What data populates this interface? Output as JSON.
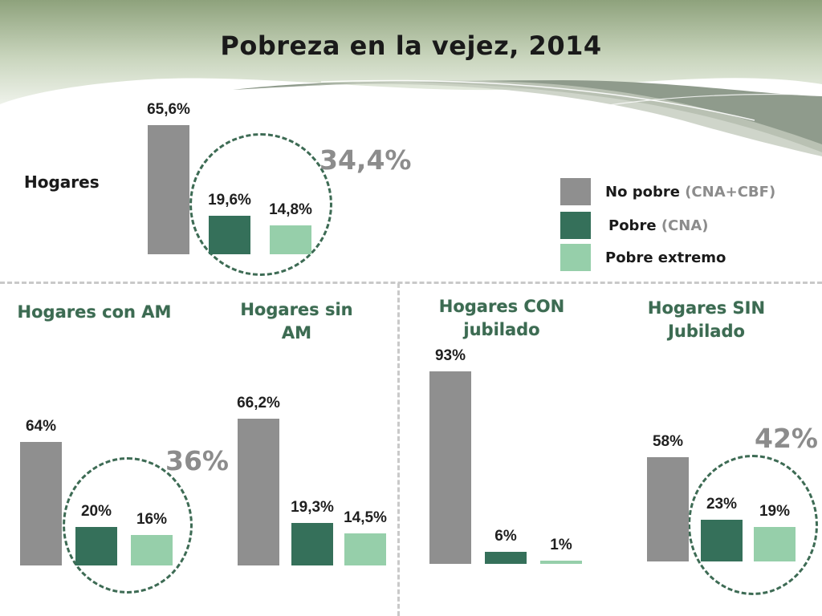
{
  "title": "Pobreza en la vejez, 2014",
  "colors": {
    "no_pobre": "#8f8f8f",
    "pobre": "#35705a",
    "pobre_extremo": "#96cfaa",
    "header_band": "#b7c6a9",
    "swoosh_dark": "#8e9a8b",
    "swoosh_light": "#c9d0c4"
  },
  "legend": {
    "items": [
      {
        "label": "No pobre",
        "note": "(CNA+CBF)",
        "color_key": "no_pobre"
      },
      {
        "label": "Pobre",
        "note": "(CNA)",
        "color_key": "pobre"
      },
      {
        "label": "Pobre extremo",
        "note": "",
        "color_key": "pobre_extremo"
      }
    ]
  },
  "chart_data": [
    {
      "type": "bar",
      "group": "Hogares",
      "title": "Hogares",
      "categories": [
        "No pobre (CNA+CBF)",
        "Pobre (CNA)",
        "Pobre extremo"
      ],
      "values": [
        65.6,
        19.6,
        14.8
      ],
      "value_labels": [
        "65,6%",
        "19,6%",
        "14,8%"
      ],
      "highlight_total": "34,4%",
      "ylim": [
        0,
        100
      ]
    },
    {
      "type": "bar",
      "group": "Hogares con AM",
      "title": "Hogares con AM",
      "categories": [
        "No pobre (CNA+CBF)",
        "Pobre (CNA)",
        "Pobre extremo"
      ],
      "values": [
        64,
        20,
        16
      ],
      "value_labels": [
        "64%",
        "20%",
        "16%"
      ],
      "highlight_total": "36%",
      "ylim": [
        0,
        100
      ]
    },
    {
      "type": "bar",
      "group": "Hogares sin AM",
      "title": "Hogares sin AM",
      "categories": [
        "No pobre (CNA+CBF)",
        "Pobre (CNA)",
        "Pobre extremo"
      ],
      "values": [
        66.2,
        19.3,
        14.5
      ],
      "value_labels": [
        "66,2%",
        "19,3%",
        "14,5%"
      ],
      "highlight_total": "",
      "ylim": [
        0,
        100
      ]
    },
    {
      "type": "bar",
      "group": "Hogares CON jubilado",
      "title": "Hogares CON jubilado",
      "categories": [
        "No pobre (CNA+CBF)",
        "Pobre (CNA)",
        "Pobre extremo"
      ],
      "values": [
        93,
        6,
        1
      ],
      "value_labels": [
        "93%",
        "6%",
        "1%"
      ],
      "highlight_total": "",
      "ylim": [
        0,
        100
      ]
    },
    {
      "type": "bar",
      "group": "Hogares SIN Jubilado",
      "title": "Hogares SIN Jubilado",
      "categories": [
        "No pobre (CNA+CBF)",
        "Pobre (CNA)",
        "Pobre extremo"
      ],
      "values": [
        58,
        23,
        19
      ],
      "value_labels": [
        "58%",
        "23%",
        "19%"
      ],
      "highlight_total": "42%",
      "ylim": [
        0,
        100
      ]
    }
  ]
}
